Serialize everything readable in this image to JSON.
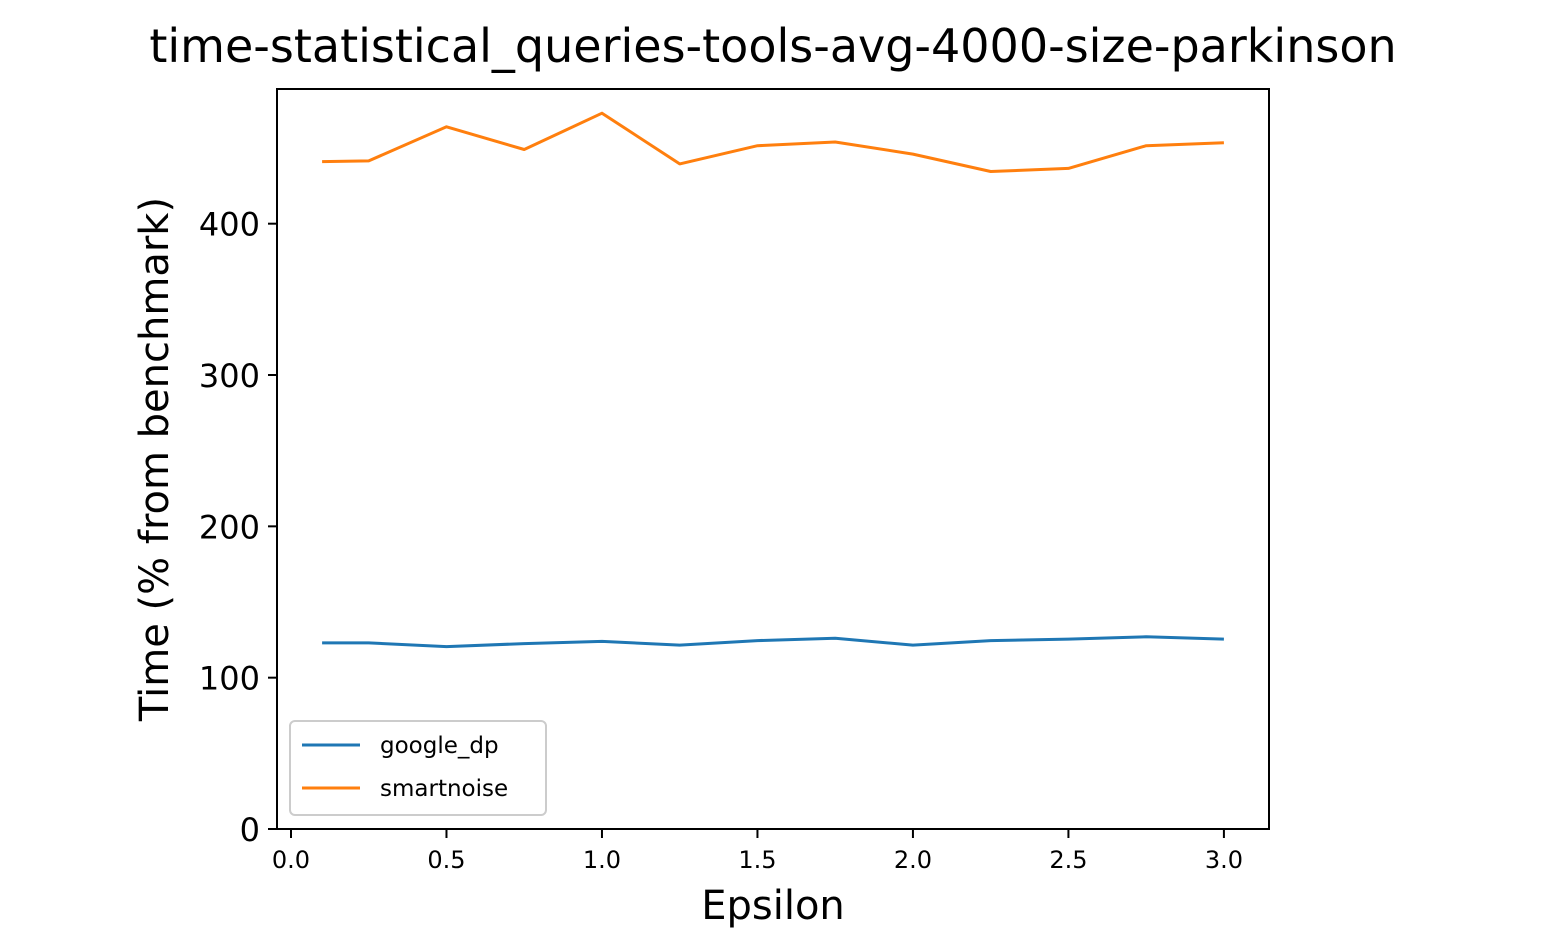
{
  "chart_data": {
    "type": "line",
    "title": "time-statistical_queries-tools-avg-4000-size-parkinson",
    "xlabel": "Epsilon",
    "ylabel": "Time (% from benchmark)",
    "x": [
      0.1,
      0.25,
      0.5,
      0.75,
      1.0,
      1.25,
      1.5,
      1.75,
      2.0,
      2.25,
      2.5,
      2.75,
      3.0
    ],
    "xlim": [
      -0.045,
      3.145
    ],
    "ylim": [
      0,
      489
    ],
    "xticks": [
      0.0,
      0.5,
      1.0,
      1.5,
      2.0,
      2.5,
      3.0
    ],
    "xtick_labels": [
      "0.0",
      "0.5",
      "1.0",
      "1.5",
      "2.0",
      "2.5",
      "3.0"
    ],
    "yticks": [
      0,
      100,
      200,
      300,
      400
    ],
    "ytick_labels": [
      "0",
      "100",
      "200",
      "300",
      "400"
    ],
    "grid": false,
    "legend_position": "bottom-left",
    "series": [
      {
        "name": "google_dp",
        "color": "#1f77b4",
        "values": [
          123,
          123,
          120.5,
          122.5,
          124,
          121.5,
          124.5,
          126,
          121.5,
          124.5,
          125.5,
          127,
          125.5
        ]
      },
      {
        "name": "smartnoise",
        "color": "#ff7f0e",
        "values": [
          441,
          441.5,
          464,
          449,
          473,
          439.5,
          451.5,
          454,
          446,
          434.5,
          436.5,
          451.5,
          453.5
        ]
      }
    ]
  }
}
